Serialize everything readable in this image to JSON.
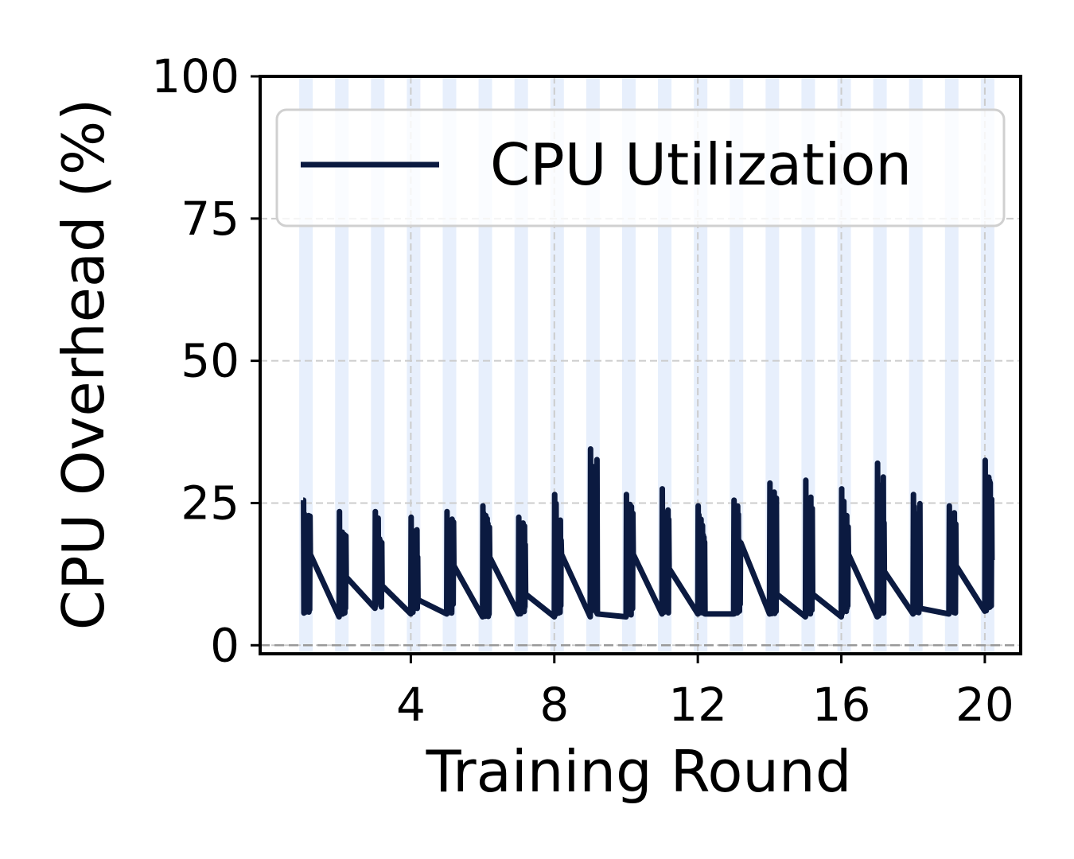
{
  "chart_data": {
    "type": "line",
    "xlabel": "Training Round",
    "ylabel": "CPU Overhead (%)",
    "xlim": [
      -0.2,
      21.0
    ],
    "ylim": [
      -1.5,
      100
    ],
    "x_ticks": [
      4,
      8,
      12,
      16,
      20
    ],
    "y_ticks": [
      0,
      25,
      50,
      75,
      100
    ],
    "grid": true,
    "baseline_y": 0,
    "legend": {
      "position": "top-right",
      "entries": [
        "CPU Utilization"
      ]
    },
    "colors": {
      "line": "#0b1a40",
      "band": "#dfe9fb",
      "grid": "#cccccc",
      "baseline": "#999999"
    },
    "band_x": [
      1.0,
      2.0,
      3.0,
      4.0,
      5.0,
      6.0,
      7.0,
      8.0,
      9.0,
      10.0,
      11.0,
      12.0,
      13.0,
      14.0,
      15.0,
      16.0,
      17.0,
      18.0,
      19.0,
      20.0
    ],
    "series": [
      {
        "name": "CPU Utilization",
        "bursts": [
          {
            "x": 1.0,
            "x_end": 1.2,
            "min": 5.5,
            "max": 25.5,
            "end": 16
          },
          {
            "x": 2.0,
            "x_end": 2.2,
            "min": 5.0,
            "max": 23.5,
            "end": 12
          },
          {
            "x": 3.0,
            "x_end": 3.2,
            "min": 6.5,
            "max": 23.5,
            "end": 10.5
          },
          {
            "x": 4.0,
            "x_end": 4.2,
            "min": 5.5,
            "max": 22.5,
            "end": 8
          },
          {
            "x": 5.0,
            "x_end": 5.2,
            "min": 5.5,
            "max": 23.5,
            "end": 14
          },
          {
            "x": 6.0,
            "x_end": 6.2,
            "min": 5.0,
            "max": 24.5,
            "end": 15.5
          },
          {
            "x": 7.0,
            "x_end": 7.2,
            "min": 5.5,
            "max": 22.5,
            "end": 9
          },
          {
            "x": 8.0,
            "x_end": 8.2,
            "min": 5.0,
            "max": 26.5,
            "end": 16
          },
          {
            "x": 9.0,
            "x_end": 9.2,
            "min": 5.0,
            "max": 34.5,
            "end": 5.5
          },
          {
            "x": 10.0,
            "x_end": 10.2,
            "min": 5.0,
            "max": 26.5,
            "end": 16
          },
          {
            "x": 11.0,
            "x_end": 11.2,
            "min": 5.5,
            "max": 27.5,
            "end": 13.5
          },
          {
            "x": 12.0,
            "x_end": 12.2,
            "min": 5.5,
            "max": 24.5,
            "end": 5.5
          },
          {
            "x": 13.0,
            "x_end": 13.2,
            "min": 5.5,
            "max": 25.5,
            "end": 18
          },
          {
            "x": 14.0,
            "x_end": 14.2,
            "min": 5.5,
            "max": 28.5,
            "end": 9
          },
          {
            "x": 15.0,
            "x_end": 15.2,
            "min": 5.0,
            "max": 29.0,
            "end": 9
          },
          {
            "x": 16.0,
            "x_end": 16.2,
            "min": 5.0,
            "max": 27.5,
            "end": 16
          },
          {
            "x": 17.0,
            "x_end": 17.2,
            "min": 5.0,
            "max": 32.0,
            "end": 13
          },
          {
            "x": 18.0,
            "x_end": 18.2,
            "min": 5.5,
            "max": 26.5,
            "end": 6.5
          },
          {
            "x": 19.0,
            "x_end": 19.2,
            "min": 5.5,
            "max": 24.5,
            "end": 14
          },
          {
            "x": 20.0,
            "x_end": 20.2,
            "min": 6.0,
            "max": 32.5,
            "end": 15
          }
        ]
      }
    ]
  }
}
